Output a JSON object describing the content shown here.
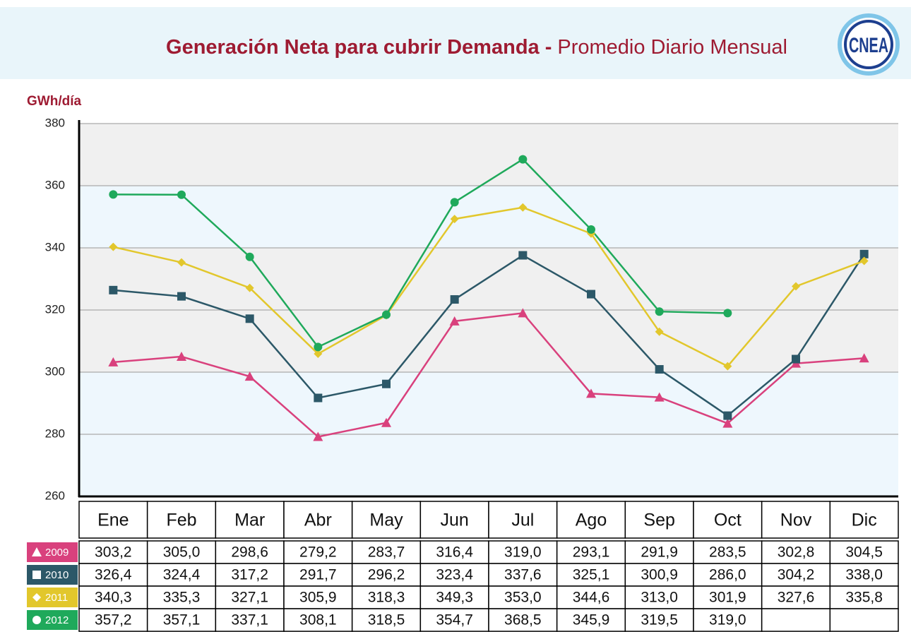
{
  "chart_data": {
    "type": "line",
    "title": "Generación Neta para cubrir Demanda -",
    "subtitle": "Promedio Diario Mensual",
    "logo": "CNEA",
    "y_label": "GWh/día",
    "categories": [
      "Ene",
      "Feb",
      "Mar",
      "Abr",
      "May",
      "Jun",
      "Jul",
      "Ago",
      "Sep",
      "Oct",
      "Nov",
      "Dic"
    ],
    "ylim": [
      260,
      380
    ],
    "yticks": [
      260,
      280,
      300,
      320,
      340,
      360,
      380
    ],
    "grid": true,
    "series": [
      {
        "name": "2009",
        "color": "#d9417d",
        "marker": "triangle",
        "values": [
          303.2,
          305.0,
          298.6,
          279.2,
          283.7,
          316.4,
          319.0,
          293.1,
          291.9,
          283.5,
          302.8,
          304.5
        ],
        "value_labels": [
          "303,2",
          "305,0",
          "298,6",
          "279,2",
          "283,7",
          "316,4",
          "319,0",
          "293,1",
          "291,9",
          "283,5",
          "302,8",
          "304,5"
        ]
      },
      {
        "name": "2010",
        "color": "#2c5868",
        "marker": "square",
        "values": [
          326.4,
          324.4,
          317.2,
          291.7,
          296.2,
          323.4,
          337.6,
          325.1,
          300.9,
          286.0,
          304.2,
          338.0
        ],
        "value_labels": [
          "326,4",
          "324,4",
          "317,2",
          "291,7",
          "296,2",
          "323,4",
          "337,6",
          "325,1",
          "300,9",
          "286,0",
          "304,2",
          "338,0"
        ]
      },
      {
        "name": "2011",
        "color": "#e2c72c",
        "marker": "diamond",
        "values": [
          340.3,
          335.3,
          327.1,
          305.9,
          318.3,
          349.3,
          353.0,
          344.6,
          313.0,
          301.9,
          327.6,
          335.8
        ],
        "value_labels": [
          "340,3",
          "335,3",
          "327,1",
          "305,9",
          "318,3",
          "349,3",
          "353,0",
          "344,6",
          "313,0",
          "301,9",
          "327,6",
          "335,8"
        ]
      },
      {
        "name": "2012",
        "color": "#1fa95b",
        "marker": "circle",
        "values": [
          357.2,
          357.1,
          337.1,
          308.1,
          318.5,
          354.7,
          368.5,
          345.9,
          319.5,
          319.0,
          null,
          null
        ],
        "value_labels": [
          "357,2",
          "357,1",
          "337,1",
          "308,1",
          "318,5",
          "354,7",
          "368,5",
          "345,9",
          "319,5",
          "319,0",
          null,
          null
        ]
      }
    ]
  }
}
